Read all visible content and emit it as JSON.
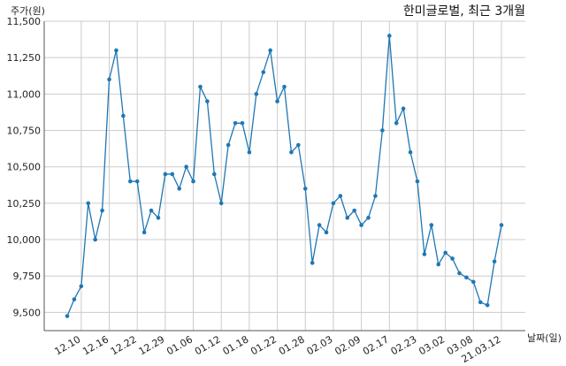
{
  "chart_data": {
    "type": "line",
    "title": "한미글로벌, 최근 3개월",
    "ylabel": "주가(원)",
    "xlabel": "날짜(일)",
    "ylim": [
      9375,
      11500
    ],
    "yticks": [
      9500,
      9750,
      10000,
      10250,
      10500,
      10750,
      11000,
      11250,
      11500
    ],
    "ytick_labels": [
      "9,500",
      "9,750",
      "10,000",
      "10,250",
      "10,500",
      "10,750",
      "11,000",
      "11,250",
      "11,500"
    ],
    "xticks": [
      {
        "index": 2,
        "label": "12.10"
      },
      {
        "index": 6,
        "label": "12.16"
      },
      {
        "index": 10,
        "label": "12.22"
      },
      {
        "index": 14,
        "label": "12.29"
      },
      {
        "index": 18,
        "label": "01.06"
      },
      {
        "index": 22,
        "label": "01.12"
      },
      {
        "index": 26,
        "label": "01.18"
      },
      {
        "index": 30,
        "label": "01.22"
      },
      {
        "index": 34,
        "label": "01.28"
      },
      {
        "index": 38,
        "label": "02.03"
      },
      {
        "index": 42,
        "label": "02.09"
      },
      {
        "index": 46,
        "label": "02.17"
      },
      {
        "index": 50,
        "label": "02.23"
      },
      {
        "index": 54,
        "label": "03.02"
      },
      {
        "index": 58,
        "label": "03.08"
      },
      {
        "index": 62,
        "label": "21.03.12"
      }
    ],
    "grid": true,
    "series": [
      {
        "color": "#1f77b4",
        "values": [
          9475,
          9590,
          9680,
          10250,
          10000,
          10200,
          11100,
          11300,
          10850,
          10400,
          10400,
          10050,
          10200,
          10150,
          10450,
          10450,
          10350,
          10500,
          10400,
          11050,
          10950,
          10450,
          10250,
          10650,
          10800,
          10800,
          10600,
          11000,
          11150,
          11300,
          10950,
          11050,
          10600,
          10650,
          10350,
          9840,
          10100,
          10050,
          10250,
          10300,
          10150,
          10200,
          10100,
          10150,
          10300,
          10750,
          11400,
          10800,
          10900,
          10600,
          10400,
          9900,
          10100,
          9830,
          9910,
          9870,
          9770,
          9740,
          9710,
          9570,
          9550,
          9850,
          10100
        ]
      }
    ]
  }
}
